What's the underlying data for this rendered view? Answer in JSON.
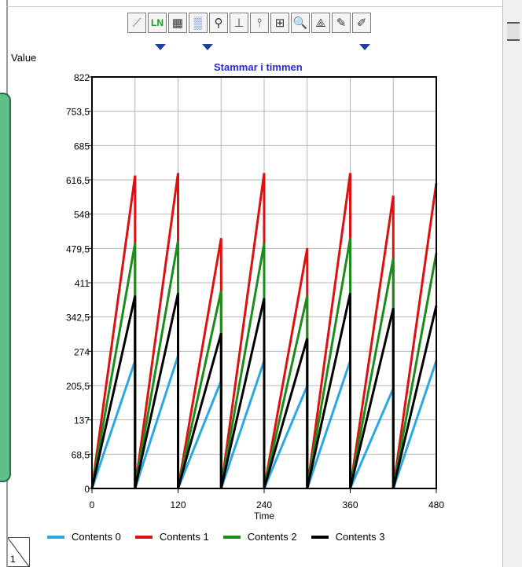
{
  "toolbar": {
    "buttons": [
      {
        "name": "line-chart-icon",
        "glyph": "⟋"
      },
      {
        "name": "ln-scale-icon",
        "glyph": "LN"
      },
      {
        "name": "data-table-icon",
        "glyph": "▦"
      },
      {
        "name": "grid-icon",
        "glyph": "▒"
      },
      {
        "name": "pin-icon",
        "glyph": "⚲"
      },
      {
        "name": "x-axis-icon",
        "glyph": "⊥"
      },
      {
        "name": "y-axis-icon",
        "glyph": "⫯"
      },
      {
        "name": "xy-axis-icon",
        "glyph": "⊞"
      },
      {
        "name": "zoom-icon",
        "glyph": "🔍"
      },
      {
        "name": "scale-icon",
        "glyph": "⟁"
      },
      {
        "name": "pencil-icon",
        "glyph": "✎"
      },
      {
        "name": "eraser-icon",
        "glyph": "✐"
      }
    ]
  },
  "panel": {
    "page_number": "1"
  },
  "chart_data": {
    "type": "line",
    "title": "Stammar i timmen",
    "ylabel": "Value",
    "xlabel": "Time",
    "xlim": [
      0,
      480
    ],
    "ylim": [
      0,
      822
    ],
    "x_ticks": [
      "0",
      "120",
      "240",
      "360",
      "480"
    ],
    "y_ticks": [
      "0",
      "68,5",
      "137",
      "205,5",
      "274",
      "342,5",
      "411",
      "479,5",
      "548",
      "616,5",
      "685",
      "753,5",
      "822"
    ],
    "grid": true,
    "legend_position": "bottom",
    "colors": {
      "Contents 0": "#2aa8e0",
      "Contents 1": "#dd1111",
      "Contents 2": "#1a8c1a",
      "Contents 3": "#000000"
    },
    "series": [
      {
        "name": "Contents 0",
        "points": [
          [
            0,
            0
          ],
          [
            60,
            255
          ],
          [
            60,
            0
          ],
          [
            120,
            265
          ],
          [
            120,
            0
          ],
          [
            180,
            215
          ],
          [
            180,
            0
          ],
          [
            240,
            255
          ],
          [
            240,
            0
          ],
          [
            300,
            205
          ],
          [
            300,
            0
          ],
          [
            360,
            255
          ],
          [
            360,
            0
          ],
          [
            420,
            200
          ],
          [
            420,
            0
          ],
          [
            480,
            255
          ]
        ]
      },
      {
        "name": "Contents 1",
        "points": [
          [
            0,
            0
          ],
          [
            60,
            625
          ],
          [
            60,
            0
          ],
          [
            120,
            630
          ],
          [
            120,
            0
          ],
          [
            180,
            500
          ],
          [
            180,
            0
          ],
          [
            240,
            630
          ],
          [
            240,
            0
          ],
          [
            300,
            480
          ],
          [
            300,
            0
          ],
          [
            360,
            630
          ],
          [
            360,
            0
          ],
          [
            420,
            585
          ],
          [
            420,
            0
          ],
          [
            480,
            610
          ]
        ]
      },
      {
        "name": "Contents 2",
        "points": [
          [
            0,
            0
          ],
          [
            60,
            490
          ],
          [
            60,
            0
          ],
          [
            120,
            495
          ],
          [
            120,
            0
          ],
          [
            180,
            395
          ],
          [
            180,
            0
          ],
          [
            240,
            490
          ],
          [
            240,
            0
          ],
          [
            300,
            385
          ],
          [
            300,
            0
          ],
          [
            360,
            500
          ],
          [
            360,
            0
          ],
          [
            420,
            460
          ],
          [
            420,
            0
          ],
          [
            480,
            470
          ]
        ]
      },
      {
        "name": "Contents 3",
        "points": [
          [
            0,
            0
          ],
          [
            60,
            385
          ],
          [
            60,
            0
          ],
          [
            120,
            390
          ],
          [
            120,
            0
          ],
          [
            180,
            310
          ],
          [
            180,
            0
          ],
          [
            240,
            380
          ],
          [
            240,
            0
          ],
          [
            300,
            300
          ],
          [
            300,
            0
          ],
          [
            360,
            390
          ],
          [
            360,
            0
          ],
          [
            420,
            360
          ],
          [
            420,
            0
          ],
          [
            480,
            365
          ]
        ]
      }
    ]
  }
}
